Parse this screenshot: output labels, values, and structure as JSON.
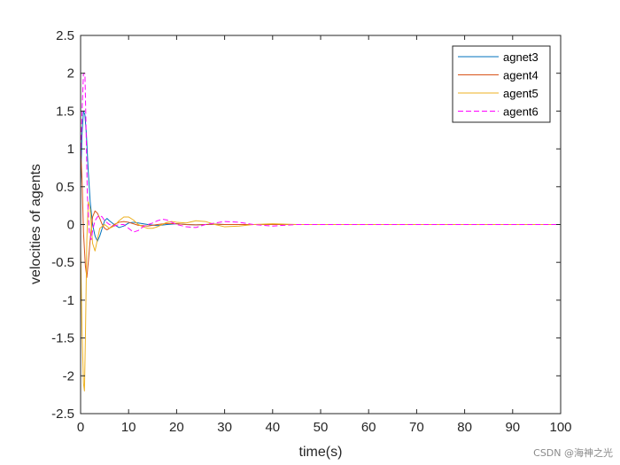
{
  "chart_data": {
    "type": "line",
    "title": "",
    "xlabel": "time(s)",
    "ylabel": "velocities of agents",
    "xlim": [
      0,
      100
    ],
    "ylim": [
      -2.5,
      2.5
    ],
    "xticks": [
      0,
      10,
      20,
      30,
      40,
      50,
      60,
      70,
      80,
      90,
      100
    ],
    "yticks": [
      -2.5,
      -2,
      -1.5,
      -1,
      -0.5,
      0,
      0.5,
      1,
      1.5,
      2,
      2.5
    ],
    "grid": false,
    "legend_position": "top-right",
    "series": [
      {
        "name": "agnet3",
        "color": "#0072BD",
        "dash": "solid",
        "x": [
          0,
          0.3,
          0.6,
          0.9,
          1.2,
          1.6,
          2.0,
          2.5,
          3.0,
          3.5,
          4.0,
          4.5,
          5.0,
          5.5,
          6.0,
          7,
          8,
          9,
          10,
          11,
          12,
          14,
          16,
          18,
          20,
          22,
          24,
          26,
          28,
          30,
          33,
          36,
          40,
          45,
          50,
          60,
          70,
          80,
          90,
          100
        ],
        "y": [
          0.5,
          1.2,
          1.5,
          1.45,
          1.2,
          0.7,
          0.3,
          0.0,
          -0.15,
          -0.22,
          -0.15,
          -0.05,
          0.05,
          0.08,
          0.05,
          0.0,
          -0.04,
          -0.02,
          0.02,
          0.03,
          0.02,
          0.0,
          -0.015,
          0.0,
          0.01,
          0.0,
          -0.005,
          0.0,
          0.005,
          0.0,
          0.0,
          0.0,
          0.0,
          0.0,
          0.0,
          0.0,
          0.0,
          0.0,
          0.0,
          0.0
        ]
      },
      {
        "name": "agent4",
        "color": "#D95319",
        "dash": "solid",
        "x": [
          0,
          0.3,
          0.6,
          1.0,
          1.3,
          1.6,
          2.0,
          2.5,
          3.0,
          3.5,
          4.0,
          4.5,
          5.0,
          5.5,
          6.0,
          7,
          8,
          9,
          10,
          11,
          12,
          14,
          16,
          18,
          20,
          22,
          24,
          26,
          28,
          30,
          33,
          36,
          40,
          45,
          50,
          60,
          70,
          80,
          90,
          100
        ],
        "y": [
          1.0,
          0.6,
          -0.1,
          -0.55,
          -0.7,
          -0.5,
          -0.2,
          0.1,
          0.18,
          0.15,
          0.08,
          0.0,
          -0.05,
          -0.07,
          -0.05,
          0.0,
          0.03,
          0.04,
          0.03,
          0.01,
          -0.01,
          -0.02,
          0.0,
          0.015,
          0.01,
          0.0,
          -0.005,
          0.0,
          0.005,
          0.0,
          0.0,
          0.0,
          0.0,
          0.0,
          0.0,
          0.0,
          0.0,
          0.0,
          0.0,
          0.0
        ]
      },
      {
        "name": "agent5",
        "color": "#EDB120",
        "dash": "solid",
        "x": [
          0,
          0.3,
          0.6,
          0.8,
          1.0,
          1.3,
          1.6,
          2.0,
          2.5,
          3.0,
          3.5,
          4.0,
          5.0,
          6.0,
          7,
          8,
          9,
          10,
          11,
          12,
          13,
          14,
          15,
          16,
          17,
          18,
          19,
          20,
          22,
          24,
          26,
          28,
          30,
          33,
          36,
          40,
          45,
          50,
          60,
          70,
          80,
          90,
          100
        ],
        "y": [
          -0.3,
          -1.4,
          -2.1,
          -2.2,
          -1.5,
          -0.2,
          0.3,
          0.2,
          -0.25,
          -0.35,
          -0.2,
          -0.05,
          0.0,
          -0.05,
          -0.02,
          0.05,
          0.1,
          0.1,
          0.06,
          0.0,
          -0.03,
          -0.05,
          -0.05,
          -0.03,
          0.0,
          0.03,
          0.04,
          0.03,
          0.02,
          0.05,
          0.04,
          0.0,
          -0.03,
          -0.02,
          0.0,
          0.01,
          0.0,
          0.0,
          0.0,
          0.0,
          0.0,
          0.0,
          0.0
        ]
      },
      {
        "name": "agent6",
        "color": "#FF00FF",
        "dash": "dashed",
        "x": [
          0,
          0.3,
          0.6,
          0.9,
          1.1,
          1.4,
          1.8,
          2.2,
          2.6,
          3.0,
          3.5,
          4.0,
          4.5,
          5.0,
          6.0,
          7,
          8,
          9,
          10,
          11,
          12,
          13,
          14,
          15,
          16,
          17,
          18,
          19,
          20,
          22,
          24,
          26,
          28,
          30,
          33,
          36,
          40,
          45,
          50,
          60,
          70,
          80,
          90,
          100
        ],
        "y": [
          0.8,
          1.5,
          2.0,
          2.0,
          1.4,
          0.4,
          -0.1,
          -0.2,
          -0.05,
          0.05,
          0.1,
          0.12,
          0.1,
          0.05,
          0.0,
          -0.02,
          0.0,
          0.0,
          -0.05,
          -0.1,
          -0.08,
          -0.03,
          0.0,
          0.02,
          0.05,
          0.07,
          0.06,
          0.03,
          0.0,
          -0.03,
          -0.04,
          0.0,
          0.02,
          0.04,
          0.03,
          0.0,
          -0.02,
          0.0,
          0.0,
          0.0,
          0.0,
          0.0,
          0.0,
          0.0
        ]
      }
    ]
  },
  "watermark": "CSDN @海神之光"
}
